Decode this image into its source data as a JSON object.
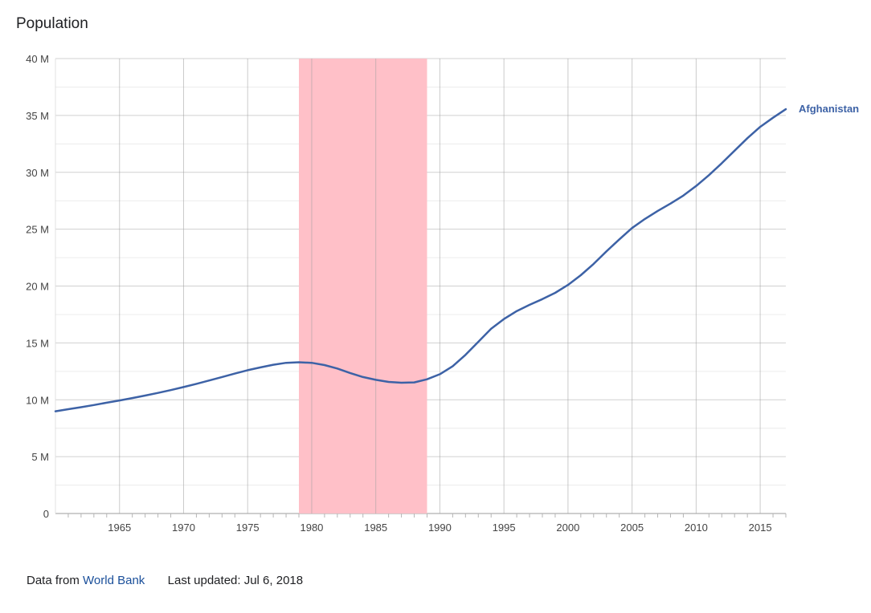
{
  "chart_data": {
    "type": "line",
    "title": "Population",
    "xlim": [
      1960,
      2017
    ],
    "ylim": [
      0,
      40000000
    ],
    "y_ticks": [
      {
        "value": 0,
        "label": "0"
      },
      {
        "value": 5000000,
        "label": "5 M"
      },
      {
        "value": 10000000,
        "label": "10 M"
      },
      {
        "value": 15000000,
        "label": "15 M"
      },
      {
        "value": 20000000,
        "label": "20 M"
      },
      {
        "value": 25000000,
        "label": "25 M"
      },
      {
        "value": 30000000,
        "label": "30 M"
      },
      {
        "value": 35000000,
        "label": "35 M"
      },
      {
        "value": 40000000,
        "label": "40 M"
      }
    ],
    "x_ticks": [
      1965,
      1970,
      1975,
      1980,
      1985,
      1990,
      1995,
      2000,
      2005,
      2010,
      2015
    ],
    "grid": true,
    "highlight_band": {
      "from": 1979,
      "to": 1989,
      "color": "#ffc0c8"
    },
    "series": [
      {
        "name": "Afghanistan",
        "color": "#3d62a6",
        "x": [
          1960,
          1961,
          1962,
          1963,
          1964,
          1965,
          1966,
          1967,
          1968,
          1969,
          1970,
          1971,
          1972,
          1973,
          1974,
          1975,
          1976,
          1977,
          1978,
          1979,
          1980,
          1981,
          1982,
          1983,
          1984,
          1985,
          1986,
          1987,
          1988,
          1989,
          1990,
          1991,
          1992,
          1993,
          1994,
          1995,
          1996,
          1997,
          1998,
          1999,
          2000,
          2001,
          2002,
          2003,
          2004,
          2005,
          2006,
          2007,
          2008,
          2009,
          2010,
          2011,
          2012,
          2013,
          2014,
          2015,
          2016,
          2017
        ],
        "values": [
          8990000,
          9170000,
          9350000,
          9540000,
          9740000,
          9940000,
          10150000,
          10370000,
          10600000,
          10850000,
          11120000,
          11400000,
          11700000,
          12000000,
          12300000,
          12600000,
          12850000,
          13080000,
          13250000,
          13300000,
          13250000,
          13050000,
          12750000,
          12350000,
          12000000,
          11750000,
          11570000,
          11500000,
          11530000,
          11800000,
          12250000,
          12950000,
          13950000,
          15100000,
          16250000,
          17100000,
          17800000,
          18350000,
          18850000,
          19400000,
          20100000,
          20950000,
          21950000,
          23050000,
          24100000,
          25100000,
          25900000,
          26600000,
          27250000,
          27950000,
          28800000,
          29750000,
          30800000,
          31900000,
          33000000,
          34000000,
          34800000,
          35550000
        ]
      }
    ]
  },
  "footer": {
    "source_prefix": "Data from",
    "source_link": "World Bank",
    "updated": "Last updated: Jul 6, 2018"
  }
}
